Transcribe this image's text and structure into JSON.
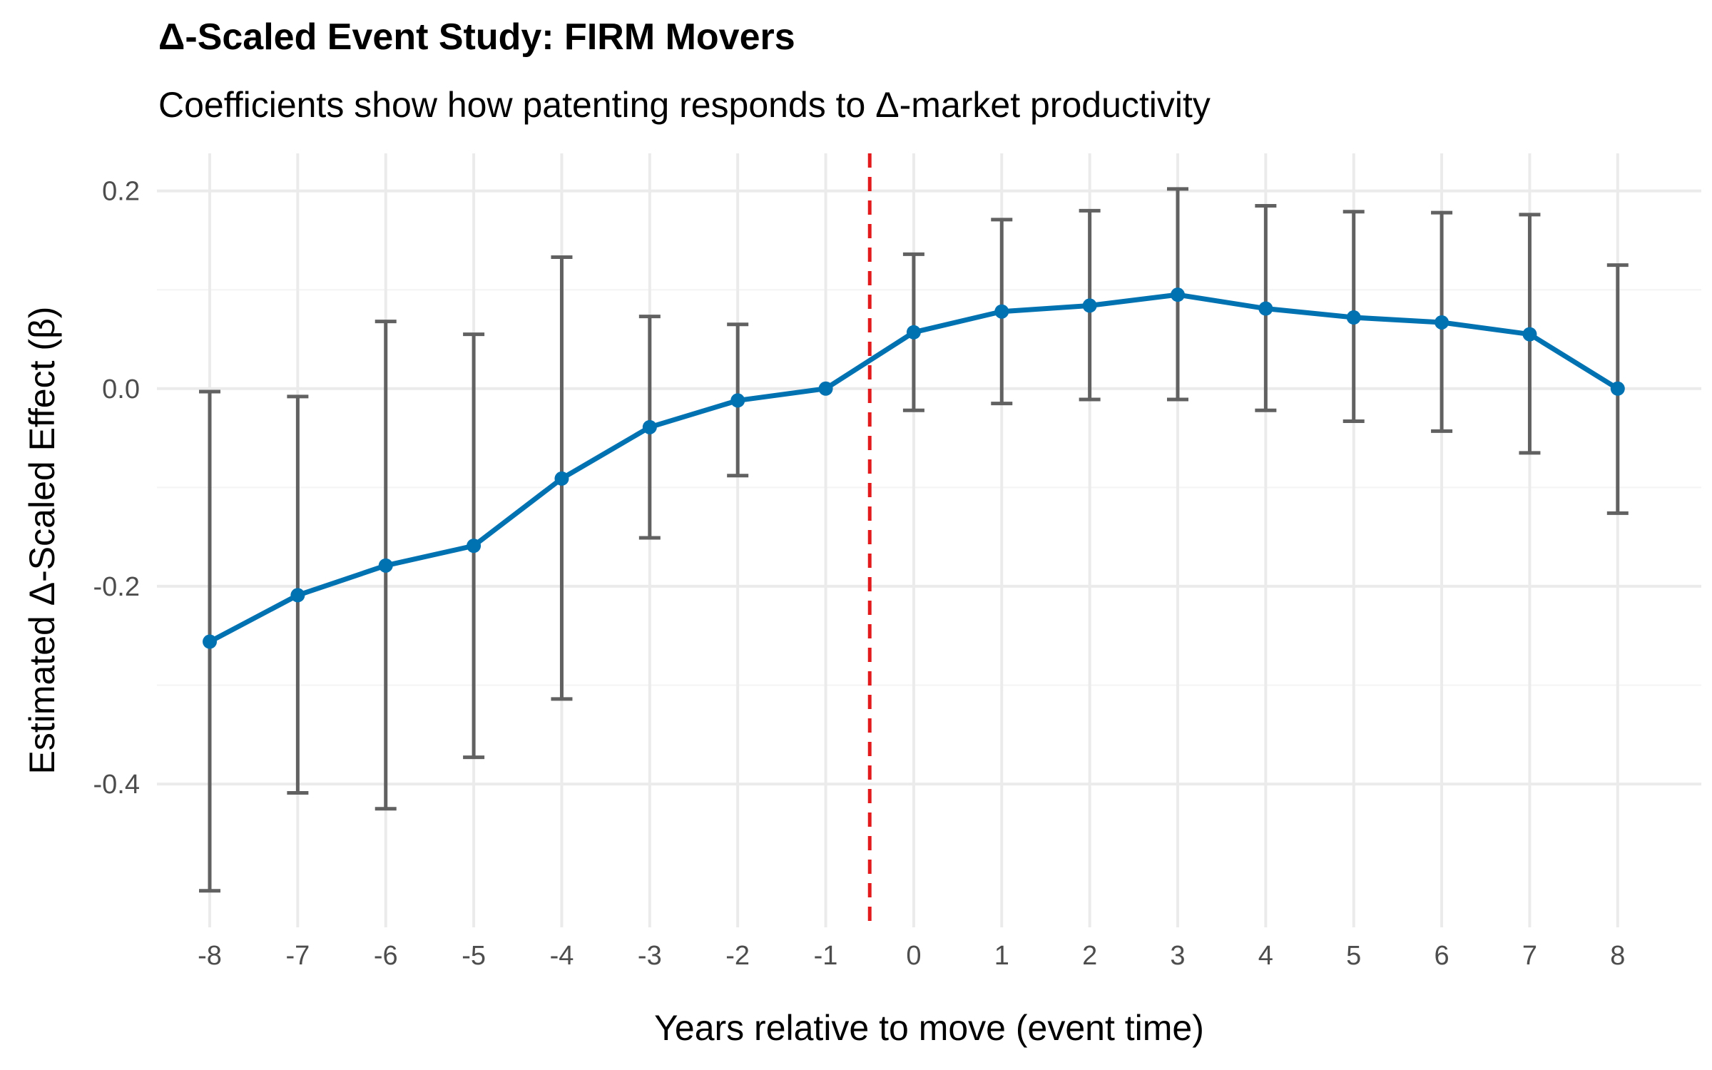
{
  "chart_data": {
    "type": "line",
    "title": "Δ-Scaled Event Study: FIRM Movers",
    "subtitle": "Coefficients show how patenting responds to Δ-market productivity",
    "xlabel": "Years relative to move (event time)",
    "ylabel": "Estimated Δ-Scaled Effect (β)",
    "x": [
      -8,
      -7,
      -6,
      -5,
      -4,
      -3,
      -2,
      -1,
      0,
      1,
      2,
      3,
      4,
      5,
      6,
      7,
      8
    ],
    "x_tick_labels": [
      "-8",
      "-7",
      "-6",
      "-5",
      "-4",
      "-3",
      "-2",
      "-1",
      "0",
      "1",
      "2",
      "3",
      "4",
      "5",
      "6",
      "7",
      "8"
    ],
    "y_ticks": [
      0.2,
      0.0,
      -0.2,
      -0.4
    ],
    "y_tick_labels": [
      "0.2",
      "0.0",
      "-0.2",
      "-0.4"
    ],
    "series": [
      {
        "values": [
          -0.256,
          -0.209,
          -0.179,
          -0.159,
          -0.091,
          -0.039,
          -0.012,
          0.0,
          0.057,
          0.078,
          0.084,
          0.095,
          0.081,
          0.072,
          0.067,
          0.055,
          0.0
        ],
        "ci_lower": [
          -0.508,
          -0.409,
          -0.425,
          -0.373,
          -0.314,
          -0.151,
          -0.088,
          0.0,
          -0.022,
          -0.015,
          -0.011,
          -0.011,
          -0.022,
          -0.033,
          -0.043,
          -0.065,
          -0.126
        ],
        "ci_upper": [
          -0.003,
          -0.008,
          0.068,
          0.055,
          0.133,
          0.073,
          0.065,
          0.0,
          0.136,
          0.171,
          0.18,
          0.202,
          0.185,
          0.179,
          0.178,
          0.176,
          0.125
        ]
      }
    ],
    "reference_line_x": -0.5,
    "xlim": [
      -8.6,
      8.95
    ],
    "ylim": [
      -0.545,
      0.238
    ],
    "grid": true,
    "legend": "none",
    "colors": {
      "line": "#0072B2",
      "errorbar": "#616161",
      "reference": "#e31a1c",
      "grid": "#ebebeb"
    }
  }
}
